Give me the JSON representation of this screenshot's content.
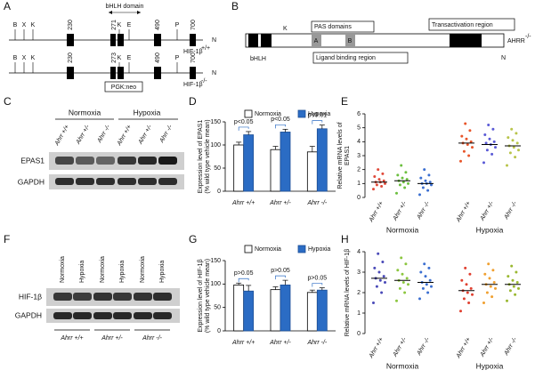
{
  "panel_a": {
    "label": "A",
    "domain": "bHLH domain",
    "tracks": [
      {
        "sites": [
          "B",
          "X",
          "K",
          "230",
          "271",
          "K",
          "E",
          "490",
          "P",
          "700"
        ],
        "end": "N",
        "gene": "HIF-1β",
        "genotype": "+/+"
      },
      {
        "sites": [
          "B",
          "X",
          "K",
          "230",
          "273",
          "K",
          "E",
          "490",
          "P",
          "700"
        ],
        "end": "N",
        "gene": "HIF-1β",
        "genotype": "-/-"
      }
    ],
    "cassette": "PGK:neo"
  },
  "panel_b": {
    "label": "B",
    "site": "K",
    "pas": "PAS domains",
    "repeats": [
      "A",
      "B"
    ],
    "transactivation": "Transactivation region",
    "protein": "AHRR",
    "genotype": "-/-",
    "bhlh": "bHLH",
    "ligand": "Ligand binding region",
    "end": "N"
  },
  "panel_c": {
    "label": "C",
    "groups": [
      "Normoxia",
      "Hypoxia"
    ],
    "lanes": [
      "Ahrr +/+",
      "Ahrr +/-",
      "Ahrr -/-",
      "Ahrr +/+",
      "Ahrr +/-",
      "Ahrr -/-"
    ],
    "rows": [
      "EPAS1",
      "GAPDH"
    ]
  },
  "panel_f": {
    "label": "F",
    "lanes": [
      "Normoxia",
      "Hypoxia",
      "Normoxia",
      "Hypoxia",
      "Normoxia",
      "Hypoxia"
    ],
    "rows": [
      "HIF-1β",
      "GAPDH"
    ],
    "genotypes": [
      "Ahrr +/+",
      "Ahrr +/-",
      "Ahrr -/-"
    ]
  },
  "chart_data": [
    {
      "panel": "D",
      "type": "bar",
      "ylabel": [
        "Expression level of EPAS1",
        "(% wild type vehicle mean)"
      ],
      "categories": [
        "Ahrr +/+",
        "Ahrr +/-",
        "Ahrr -/-"
      ],
      "series": [
        {
          "name": "Normoxia",
          "color": "#ffffff",
          "values": [
            100,
            90,
            85
          ],
          "errors": [
            6,
            7,
            12
          ]
        },
        {
          "name": "Hypoxia",
          "color": "#2b6cc4",
          "values": [
            122,
            128,
            135
          ],
          "errors": [
            7,
            6,
            8
          ]
        }
      ],
      "annotations": [
        "p<0.05",
        "p<0.05",
        "p<0.01"
      ],
      "ylim": [
        0,
        150
      ],
      "yticks": [
        0,
        50,
        100,
        150
      ]
    },
    {
      "panel": "E",
      "type": "strip",
      "ylabel": [
        "Relative mRNA levels of",
        "EPAS1"
      ],
      "groups": [
        "Normoxia",
        "Hypoxia"
      ],
      "ylim": [
        0,
        6
      ],
      "yticks": [
        0,
        1,
        2,
        3,
        4,
        5,
        6
      ],
      "series": [
        {
          "name": "Ahrr +/+",
          "color": "#e04a3a",
          "mean": 1.1,
          "values": [
            0.6,
            0.8,
            0.9,
            1.0,
            1.1,
            1.1,
            1.2,
            1.3,
            1.5,
            1.7,
            2.0
          ]
        },
        {
          "name": "Ahrr +/-",
          "color": "#6cbf3f",
          "mean": 1.2,
          "values": [
            0.3,
            0.7,
            0.9,
            1.0,
            1.1,
            1.2,
            1.3,
            1.4,
            1.6,
            1.8,
            2.3
          ]
        },
        {
          "name": "Ahrr -/-",
          "color": "#3b6fd1",
          "mean": 1.0,
          "values": [
            0.2,
            0.5,
            0.7,
            0.9,
            1.0,
            1.0,
            1.1,
            1.2,
            1.4,
            1.6,
            2.0
          ]
        },
        {
          "name": "Ahrr +/+",
          "color": "#e8552a",
          "mean": 3.9,
          "values": [
            2.6,
            3.0,
            3.3,
            3.6,
            3.8,
            3.9,
            4.0,
            4.2,
            4.4,
            4.8,
            5.3
          ]
        },
        {
          "name": "Ahrr +/-",
          "color": "#5a5ad6",
          "mean": 3.8,
          "values": [
            2.5,
            3.1,
            3.4,
            3.6,
            3.8,
            3.9,
            4.0,
            4.2,
            4.5,
            4.9,
            5.2
          ]
        },
        {
          "name": "Ahrr -/-",
          "color": "#b8c44a",
          "mean": 3.7,
          "values": [
            2.3,
            2.9,
            3.2,
            3.4,
            3.6,
            3.7,
            3.9,
            4.1,
            4.3,
            4.6,
            4.9
          ]
        }
      ]
    },
    {
      "panel": "G",
      "type": "bar",
      "ylabel": [
        "Expression level of HIF-1β",
        "(% wild type vehicle mean)"
      ],
      "categories": [
        "Ahrr +/+",
        "Ahrr +/-",
        "Ahrr -/-"
      ],
      "series": [
        {
          "name": "Normoxia",
          "color": "#ffffff",
          "values": [
            98,
            88,
            82
          ],
          "errors": [
            4,
            6,
            5
          ]
        },
        {
          "name": "Hypoxia",
          "color": "#2b6cc4",
          "values": [
            85,
            98,
            87
          ],
          "errors": [
            12,
            10,
            5
          ]
        }
      ],
      "annotations": [
        "p>0.05",
        "p>0.05",
        "p>0.05"
      ],
      "ylim": [
        0,
        150
      ],
      "yticks": [
        0,
        50,
        100,
        150
      ]
    },
    {
      "panel": "H",
      "type": "strip",
      "ylabel": [
        "Relative mRNA levels of HIF-1β"
      ],
      "groups": [
        "Normoxia",
        "Hypoxia"
      ],
      "ylim": [
        0,
        4
      ],
      "yticks": [
        0,
        1,
        2,
        3,
        4
      ],
      "series": [
        {
          "name": "Ahrr +/+",
          "color": "#4a4ab8",
          "mean": 2.7,
          "values": [
            1.5,
            2.0,
            2.3,
            2.5,
            2.6,
            2.7,
            2.8,
            3.0,
            3.2,
            3.5,
            3.9
          ]
        },
        {
          "name": "Ahrr +/-",
          "color": "#8cc63f",
          "mean": 2.6,
          "values": [
            1.6,
            2.0,
            2.2,
            2.4,
            2.5,
            2.6,
            2.7,
            2.9,
            3.1,
            3.4,
            3.7
          ]
        },
        {
          "name": "Ahrr -/-",
          "color": "#3b6fd1",
          "mean": 2.5,
          "values": [
            1.7,
            2.0,
            2.2,
            2.3,
            2.4,
            2.5,
            2.6,
            2.8,
            3.0,
            3.2,
            3.4
          ]
        },
        {
          "name": "Ahrr +/+",
          "color": "#e04030",
          "mean": 2.1,
          "values": [
            1.1,
            1.5,
            1.7,
            1.9,
            2.0,
            2.1,
            2.2,
            2.4,
            2.6,
            2.9,
            3.2
          ]
        },
        {
          "name": "Ahrr +/-",
          "color": "#f0a030",
          "mean": 2.4,
          "values": [
            1.5,
            1.8,
            2.0,
            2.2,
            2.3,
            2.4,
            2.5,
            2.7,
            2.9,
            3.1,
            3.4
          ]
        },
        {
          "name": "Ahrr -/-",
          "color": "#9ab830",
          "mean": 2.4,
          "values": [
            1.6,
            1.9,
            2.1,
            2.2,
            2.3,
            2.4,
            2.5,
            2.6,
            2.8,
            3.0,
            3.3
          ]
        }
      ]
    }
  ]
}
